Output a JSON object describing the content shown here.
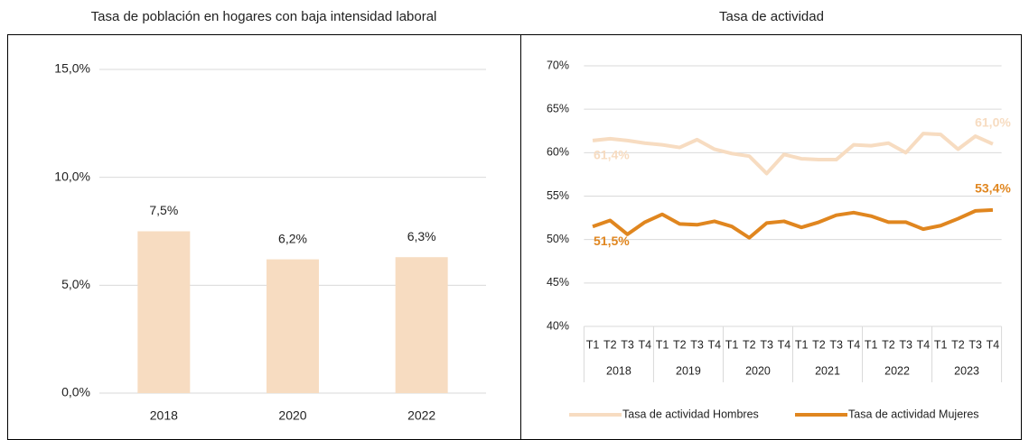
{
  "chart_data": [
    {
      "type": "bar",
      "title": "Tasa de población en hogares con baja intensidad laboral",
      "categories": [
        "2018",
        "2020",
        "2022"
      ],
      "values": [
        7.5,
        6.2,
        6.3
      ],
      "value_labels": [
        "7,5%",
        "6,2%",
        "6,3%"
      ],
      "color": "#f7dcc1",
      "ylim": [
        0,
        15
      ],
      "yticks": [
        {
          "value": 0,
          "label": "0,0%"
        },
        {
          "value": 5,
          "label": "5,0%"
        },
        {
          "value": 10,
          "label": "10,0%"
        },
        {
          "value": 15,
          "label": "15,0%"
        }
      ],
      "grid": true
    },
    {
      "type": "line",
      "title": "Tasa de actividad",
      "categories": [
        "T1",
        "T2",
        "T3",
        "T4",
        "T1",
        "T2",
        "T3",
        "T4",
        "T1",
        "T2",
        "T3",
        "T4",
        "T1",
        "T2",
        "T3",
        "T4",
        "T1",
        "T2",
        "T3",
        "T4",
        "T1",
        "T2",
        "T3",
        "T4"
      ],
      "groups": [
        "2018",
        "2019",
        "2020",
        "2021",
        "2022",
        "2023"
      ],
      "series": [
        {
          "name": "Tasa de actividad Hombres",
          "color": "#f7dcc1",
          "values": [
            61.4,
            61.6,
            61.4,
            61.1,
            60.9,
            60.6,
            61.5,
            60.4,
            59.9,
            59.6,
            57.6,
            59.8,
            59.3,
            59.2,
            59.2,
            60.9,
            60.8,
            61.1,
            60.0,
            62.2,
            62.1,
            60.4,
            61.9,
            61.0
          ],
          "value_labels": [
            "61,4%",
            null,
            null,
            null,
            null,
            null,
            null,
            null,
            null,
            null,
            null,
            null,
            null,
            null,
            null,
            null,
            null,
            null,
            null,
            null,
            null,
            null,
            null,
            "61,0%"
          ]
        },
        {
          "name": "Tasa de actividad Mujeres",
          "color": "#e0861f",
          "values": [
            51.5,
            52.2,
            50.6,
            52.0,
            52.9,
            51.8,
            51.7,
            52.1,
            51.5,
            50.2,
            51.9,
            52.1,
            51.4,
            52.0,
            52.8,
            53.1,
            52.7,
            52.0,
            52.0,
            51.2,
            51.6,
            52.4,
            53.3,
            53.4
          ],
          "value_labels": [
            "51,5%",
            null,
            null,
            null,
            null,
            null,
            null,
            null,
            null,
            null,
            null,
            null,
            null,
            null,
            null,
            null,
            null,
            null,
            null,
            null,
            null,
            null,
            null,
            "53,4%"
          ]
        }
      ],
      "ylim": [
        40,
        70
      ],
      "yticks": [
        {
          "value": 40,
          "label": "40%"
        },
        {
          "value": 45,
          "label": "45%"
        },
        {
          "value": 50,
          "label": "50%"
        },
        {
          "value": 55,
          "label": "55%"
        },
        {
          "value": 60,
          "label": "60%"
        },
        {
          "value": 65,
          "label": "65%"
        },
        {
          "value": 70,
          "label": "70%"
        }
      ],
      "grid": true,
      "legend": "bottom"
    }
  ]
}
